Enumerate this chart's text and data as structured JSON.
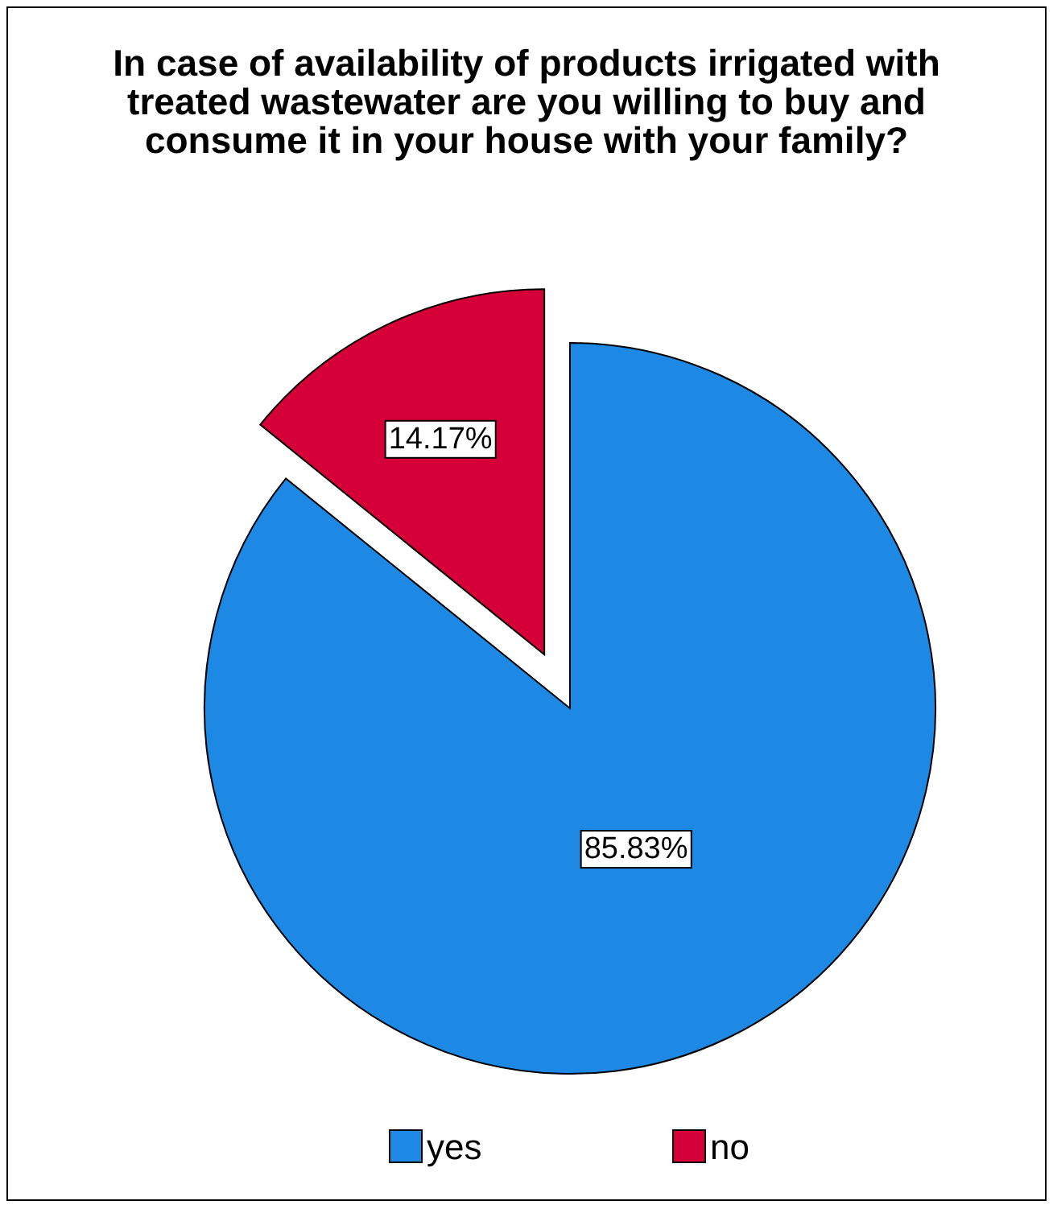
{
  "chart_data": {
    "type": "pie",
    "title": "In case of availability of products irrigated with treated wastewater are you willing to buy and consume it in your house with your family?",
    "categories": [
      "yes",
      "no"
    ],
    "values": [
      85.83,
      14.17
    ],
    "colors": [
      "#1e88e5",
      "#d50037"
    ],
    "value_labels": [
      "85.83%",
      "14.17%"
    ],
    "legend": "bottom"
  }
}
